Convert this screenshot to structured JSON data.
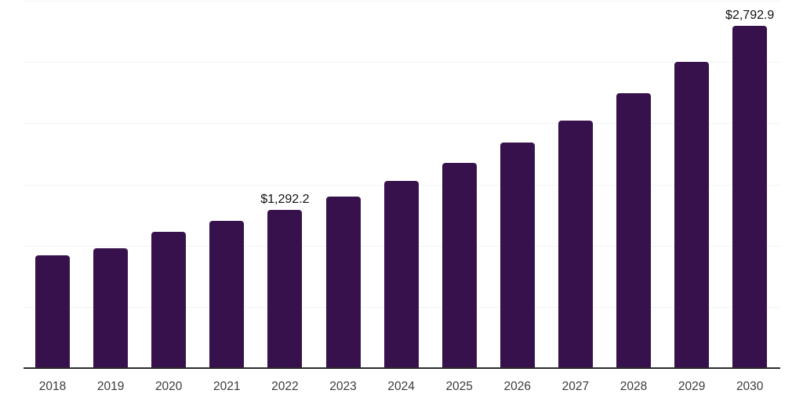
{
  "colors": {
    "background": "#ffffff",
    "bar": "#36114B",
    "axis_line": "#2b2b2b",
    "gridline": "#f3f3f5",
    "value_label": "#111111",
    "tick_label": "#3a3a3a"
  },
  "chart_data": {
    "type": "bar",
    "title": "",
    "xlabel": "",
    "ylabel": "",
    "categories": [
      "2018",
      "2019",
      "2020",
      "2021",
      "2022",
      "2023",
      "2024",
      "2025",
      "2026",
      "2027",
      "2028",
      "2029",
      "2030"
    ],
    "values": [
      920,
      978,
      1115,
      1200,
      1292.2,
      1400,
      1530,
      1675,
      1840,
      2022,
      2245,
      2500,
      2792.9
    ],
    "value_labels": {
      "2022": "$1,292.2",
      "2030": "$2,792.9"
    },
    "currency_prefix": "$",
    "ylim": [
      0,
      3000
    ],
    "gridline_step": 500,
    "y_tick_labels_visible": false,
    "grid": "horizontal",
    "legend": "none"
  }
}
